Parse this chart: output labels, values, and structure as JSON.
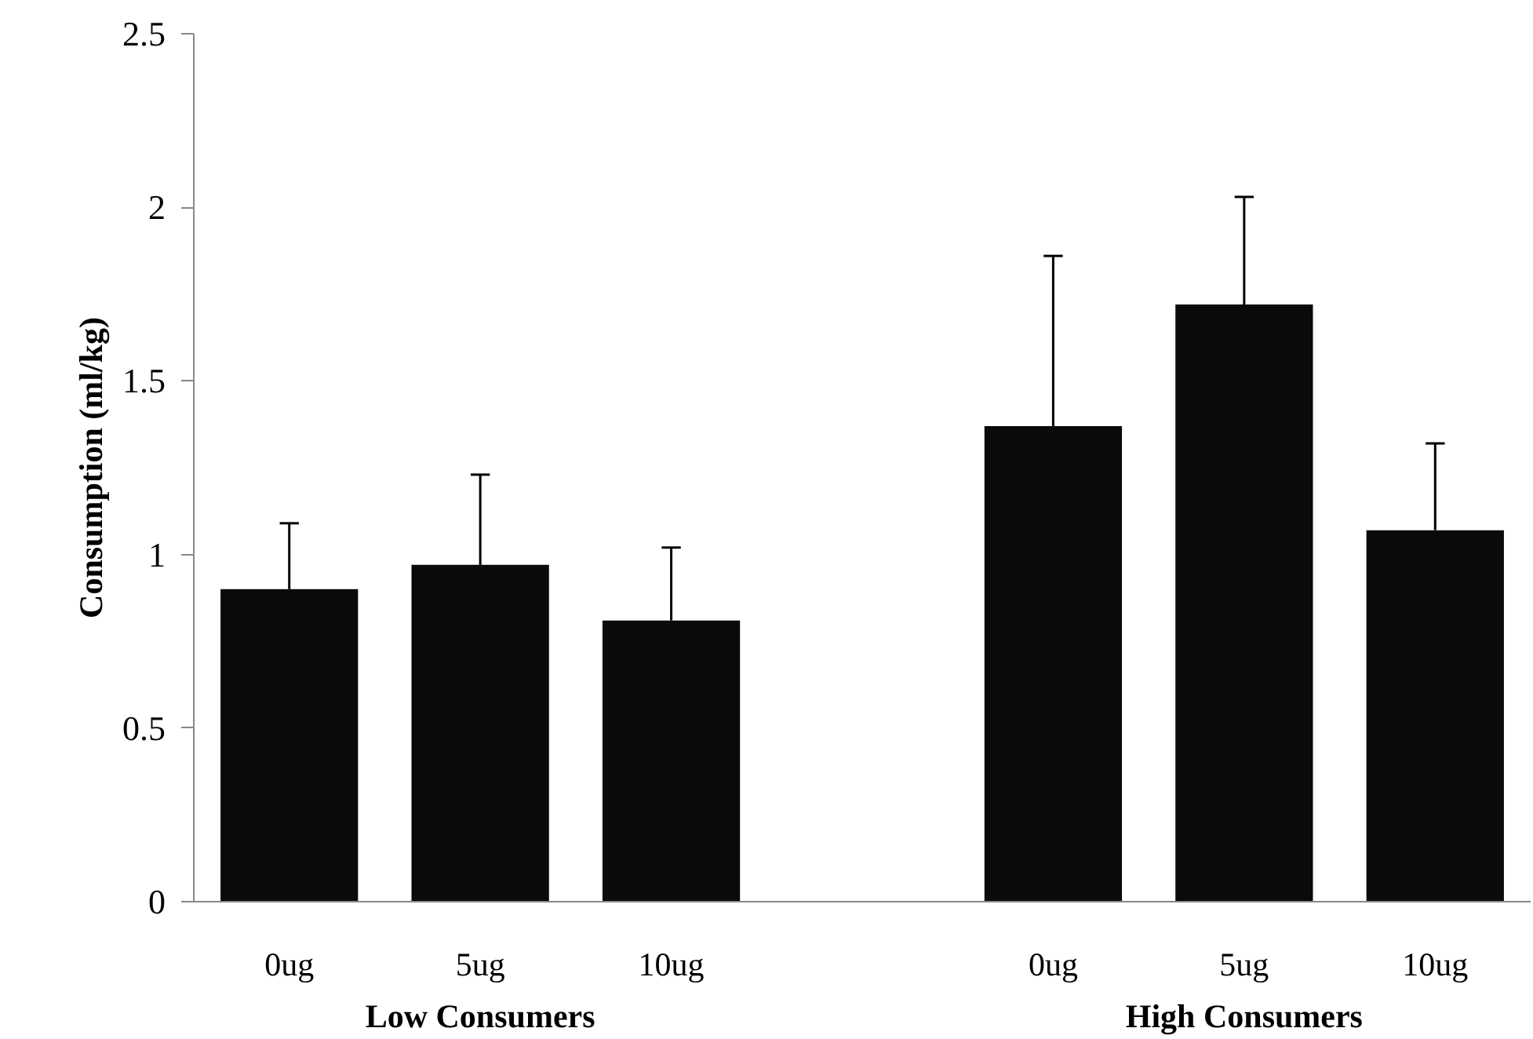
{
  "chart_data": {
    "type": "bar",
    "ylabel": "Consumption (ml/kg)",
    "categories": [
      "0ug",
      "5ug",
      "10ug",
      null,
      "0ug",
      "5ug",
      "10ug"
    ],
    "values": [
      0.9,
      0.97,
      0.81,
      null,
      1.37,
      1.72,
      1.07
    ],
    "errors": [
      [
        0.9,
        1.09
      ],
      [
        0.97,
        1.23
      ],
      [
        0.81,
        1.02
      ],
      null,
      [
        1.37,
        1.86
      ],
      [
        1.72,
        2.03
      ],
      [
        1.07,
        1.32
      ]
    ],
    "color": "#0a0a0a",
    "ylim": [
      0,
      2.5
    ],
    "yticks": [
      0,
      0.5,
      1,
      1.5,
      2,
      2.5
    ],
    "grid": false,
    "annotations": [
      "Low Consumers",
      "High Consumers"
    ]
  }
}
